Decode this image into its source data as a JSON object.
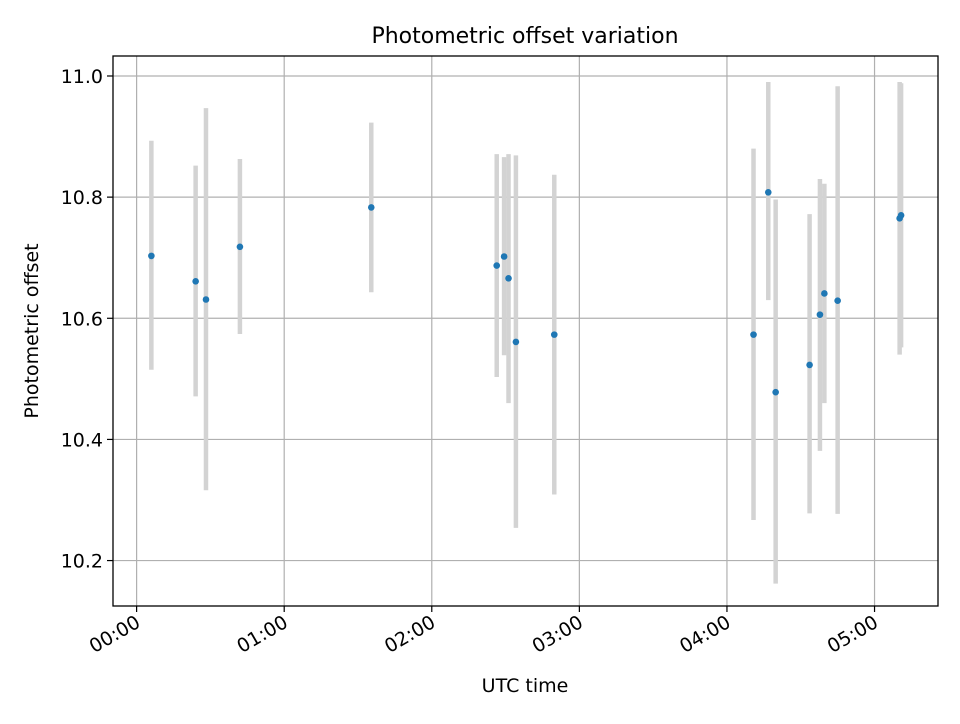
{
  "chart_data": {
    "type": "scatter",
    "title": "Photometric offset variation",
    "xlabel": "UTC time",
    "ylabel": "Photometric offset",
    "x_unit": "hours",
    "xlim": [
      -0.16,
      5.43
    ],
    "ylim": [
      10.125,
      11.033
    ],
    "x_ticks": [
      {
        "value": 0,
        "label": "00:00"
      },
      {
        "value": 1,
        "label": "01:00"
      },
      {
        "value": 2,
        "label": "02:00"
      },
      {
        "value": 3,
        "label": "03:00"
      },
      {
        "value": 4,
        "label": "04:00"
      },
      {
        "value": 5,
        "label": "05:00"
      }
    ],
    "y_ticks": [
      {
        "value": 10.2,
        "label": "10.2"
      },
      {
        "value": 10.4,
        "label": "10.4"
      },
      {
        "value": 10.6,
        "label": "10.6"
      },
      {
        "value": 10.8,
        "label": "10.8"
      },
      {
        "value": 11.0,
        "label": "11.0"
      }
    ],
    "grid": true,
    "marker_color": "#1f77b4",
    "errorbar_color": "#d3d3d3",
    "points": [
      {
        "x": 0.1,
        "y": 10.703,
        "lo": 10.515,
        "hi": 10.893
      },
      {
        "x": 0.4,
        "y": 10.661,
        "lo": 10.471,
        "hi": 10.852
      },
      {
        "x": 0.47,
        "y": 10.631,
        "lo": 10.316,
        "hi": 10.947
      },
      {
        "x": 0.7,
        "y": 10.718,
        "lo": 10.574,
        "hi": 10.863
      },
      {
        "x": 1.59,
        "y": 10.783,
        "lo": 10.643,
        "hi": 10.923
      },
      {
        "x": 2.44,
        "y": 10.687,
        "lo": 10.503,
        "hi": 10.871
      },
      {
        "x": 2.49,
        "y": 10.702,
        "lo": 10.539,
        "hi": 10.866
      },
      {
        "x": 2.52,
        "y": 10.666,
        "lo": 10.46,
        "hi": 10.871
      },
      {
        "x": 2.57,
        "y": 10.561,
        "lo": 10.254,
        "hi": 10.869
      },
      {
        "x": 2.83,
        "y": 10.573,
        "lo": 10.309,
        "hi": 10.837
      },
      {
        "x": 4.18,
        "y": 10.573,
        "lo": 10.267,
        "hi": 10.88
      },
      {
        "x": 4.28,
        "y": 10.808,
        "lo": 10.63,
        "hi": 10.99
      },
      {
        "x": 4.33,
        "y": 10.478,
        "lo": 10.162,
        "hi": 10.796
      },
      {
        "x": 4.56,
        "y": 10.523,
        "lo": 10.278,
        "hi": 10.772
      },
      {
        "x": 4.63,
        "y": 10.606,
        "lo": 10.381,
        "hi": 10.83
      },
      {
        "x": 4.66,
        "y": 10.641,
        "lo": 10.46,
        "hi": 10.822
      },
      {
        "x": 4.75,
        "y": 10.629,
        "lo": 10.277,
        "hi": 10.983
      },
      {
        "x": 5.17,
        "y": 10.765,
        "lo": 10.54,
        "hi": 10.99
      },
      {
        "x": 5.18,
        "y": 10.77,
        "lo": 10.552,
        "hi": 10.988
      }
    ]
  }
}
